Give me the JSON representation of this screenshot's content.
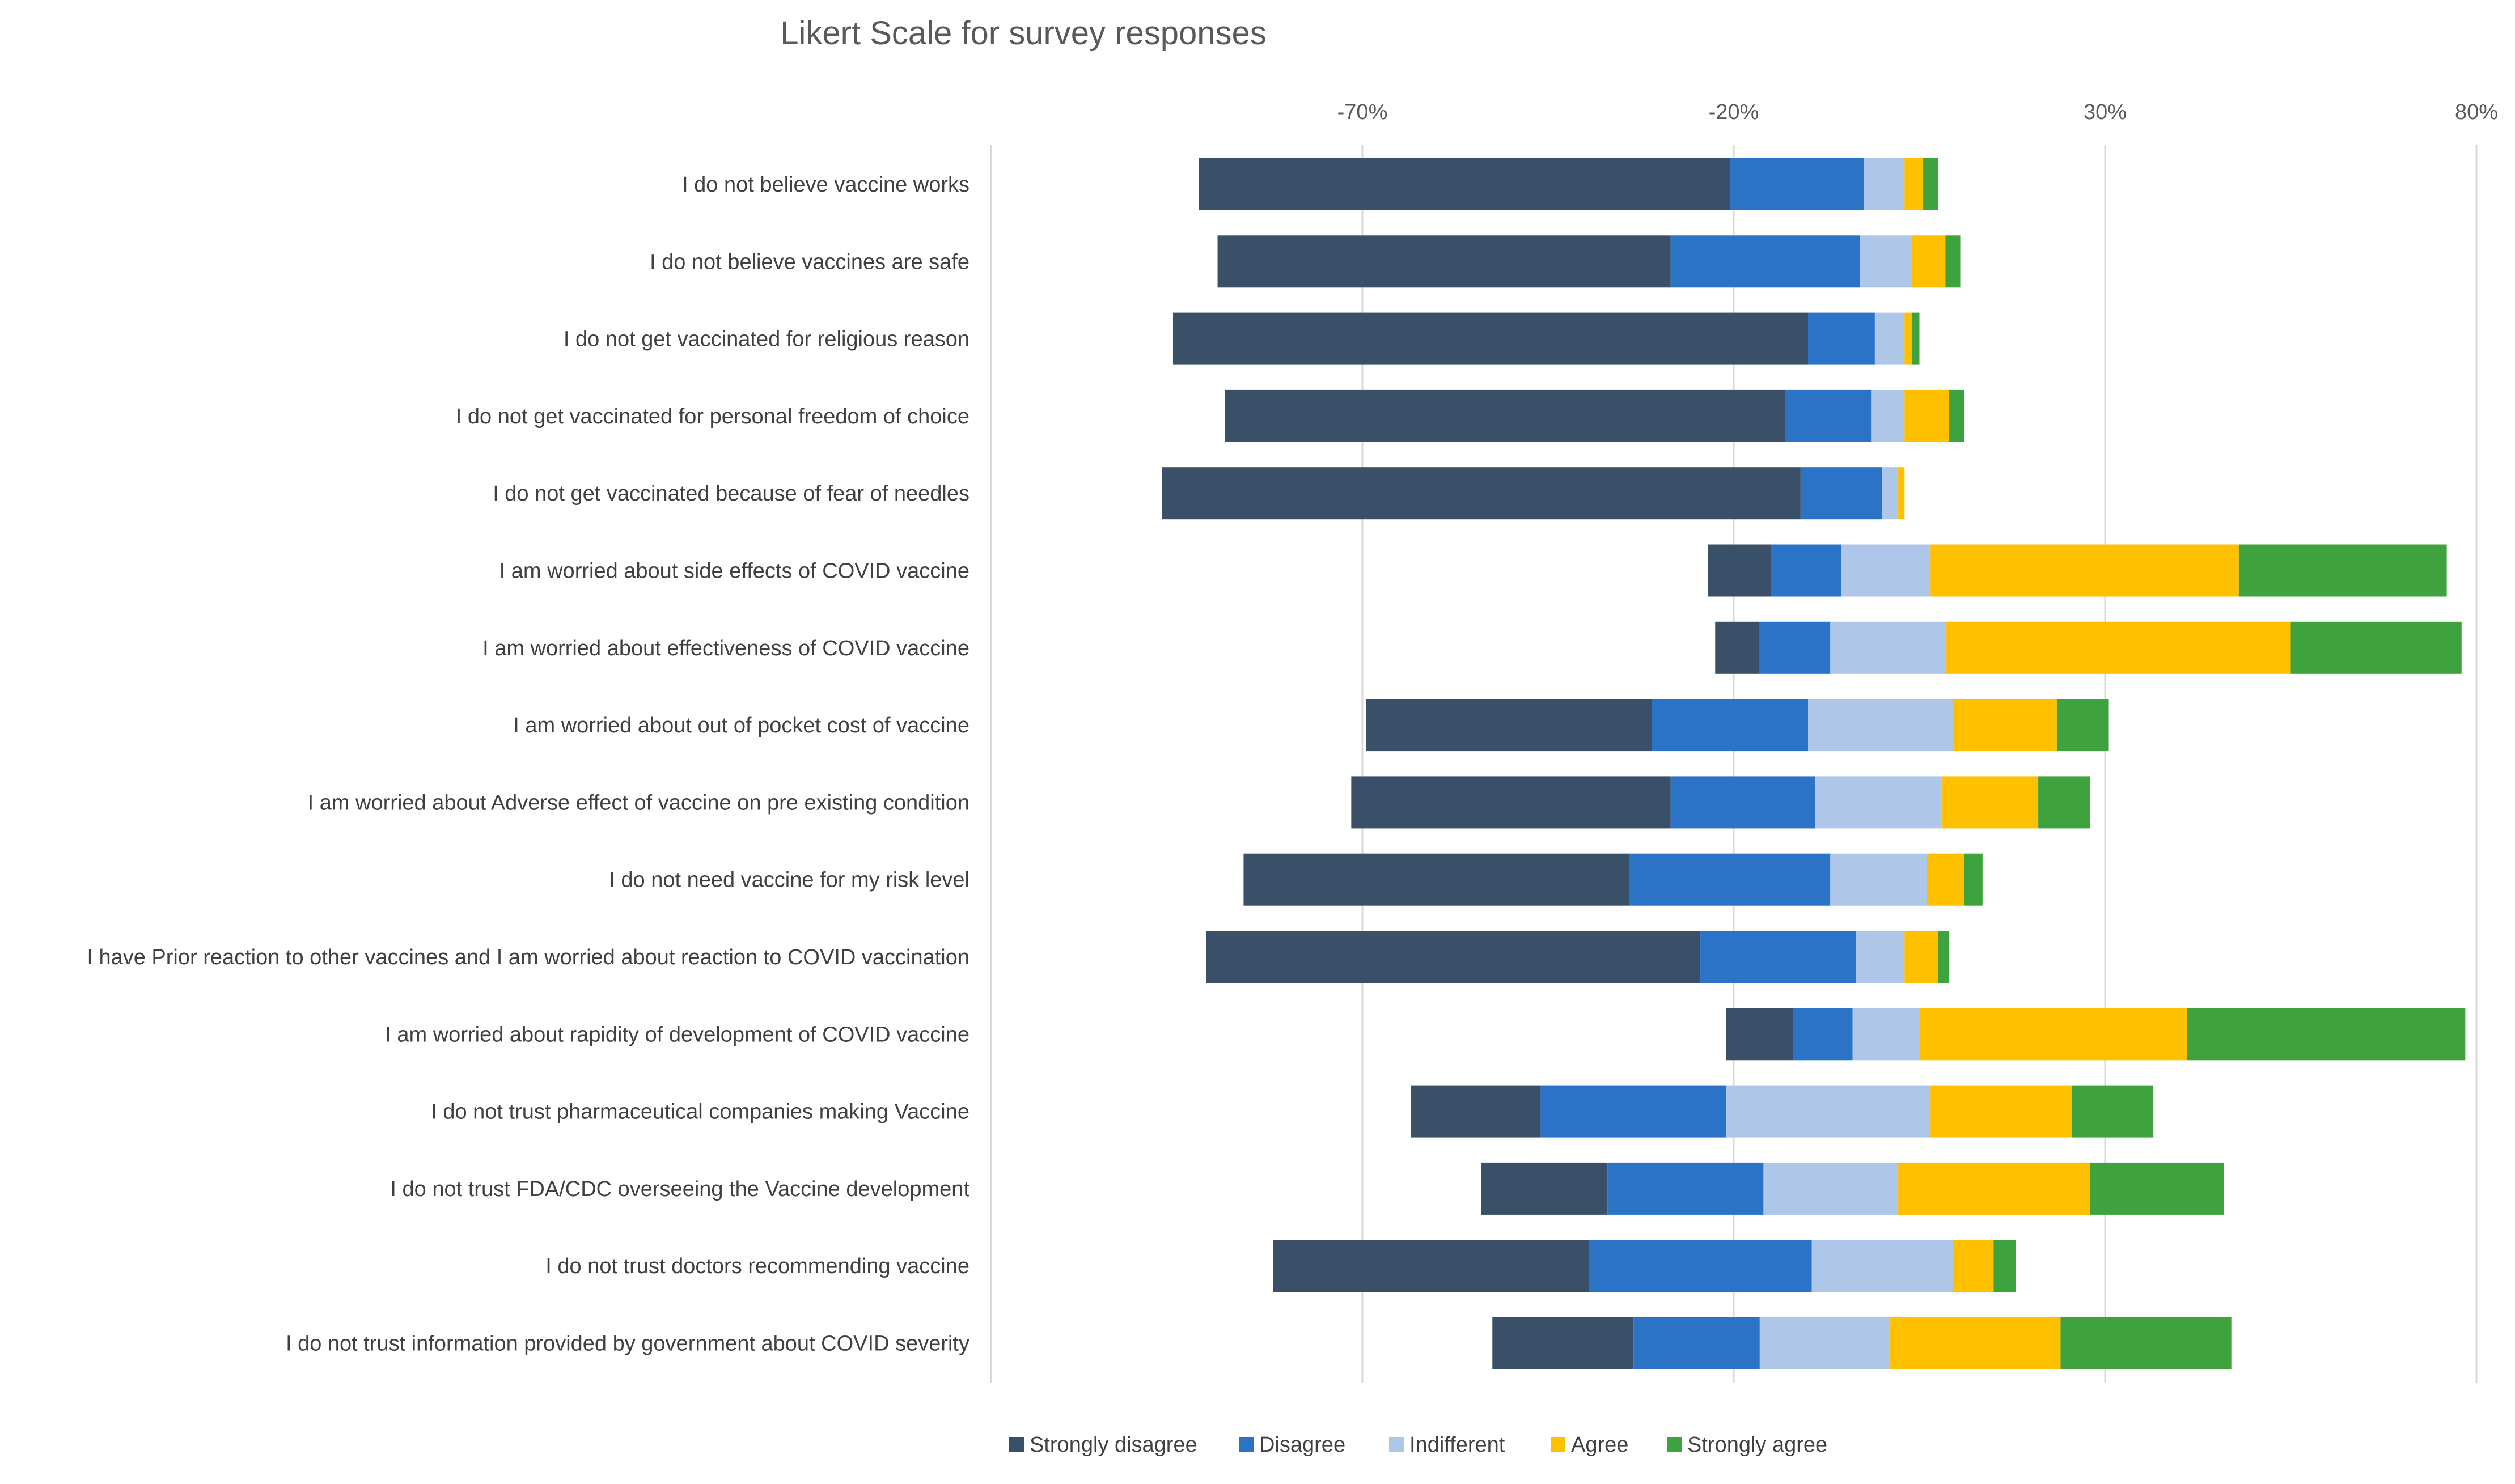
{
  "chart_data": {
    "type": "bar",
    "orientation": "horizontal",
    "stacked": "diverging",
    "title": "Likert Scale for survey responses",
    "xlabel": "",
    "ylabel": "",
    "xlim": [
      -120,
      80
    ],
    "xticks": [
      -70,
      -20,
      30,
      80
    ],
    "xtick_labels": [
      "-70%",
      "-20%",
      "30%",
      "80%"
    ],
    "x_axis_position": "top",
    "grid": true,
    "legend_position": "bottom",
    "categories": [
      "I do not believe vaccine works",
      "I do not believe vaccines are safe",
      "I do not get vaccinated for religious reason",
      "I do not get vaccinated for personal freedom of choice",
      "I do not get vaccinated because of fear  of needles",
      "I am worried about side effects of COVID vaccine",
      "I am worried about effectiveness of COVID vaccine",
      "I am worried about out of pocket cost of vaccine",
      "I am worried about Adverse effect  of vaccine on pre existing condition",
      "I do not need vaccine for my risk level",
      "I have Prior reaction to other vaccines  and I am worried  about reaction to COVID vaccination",
      "I am worried about rapidity of development of COVID vaccine",
      "I do not trust pharmaceutical companies making Vaccine",
      "I do not trust FDA/CDC overseeing the Vaccine development",
      "I do not trust doctors recommending vaccine",
      "I do not trust information provided by government about COVID severity"
    ],
    "starts": [
      -92,
      -89.5,
      -95.5,
      -88.5,
      -97,
      -23.5,
      -22.5,
      -69.5,
      -71.5,
      -86,
      -91,
      -21,
      -63.5,
      -54,
      -82,
      -52.5
    ],
    "series": [
      {
        "name": "Strongly disagree",
        "color": "#3a5069",
        "values": [
          71.5,
          61,
          85.5,
          75.5,
          86,
          8.5,
          6,
          38.5,
          43,
          52,
          66.5,
          9,
          17.5,
          17,
          42.5,
          19
        ]
      },
      {
        "name": "Disagree",
        "color": "#2a73c6",
        "values": [
          18,
          25.5,
          9,
          11.5,
          11,
          9.5,
          9.5,
          21,
          19.5,
          27,
          21,
          8,
          25,
          21,
          30,
          17
        ]
      },
      {
        "name": "Indifferent",
        "color": "#aec6e8",
        "values": [
          5.5,
          7,
          4,
          4.5,
          2,
          12,
          15.5,
          19.5,
          17,
          13,
          6.5,
          9,
          27.5,
          18,
          19,
          17.5
        ]
      },
      {
        "name": "Agree",
        "color": "#ffc000",
        "values": [
          2.5,
          4.5,
          1,
          6,
          1,
          41.5,
          46.5,
          14,
          13,
          5,
          4.5,
          36,
          19,
          26,
          5.5,
          23
        ]
      },
      {
        "name": "Strongly agree",
        "color": "#3ea33e",
        "values": [
          2,
          2,
          1,
          2,
          0,
          28,
          23,
          7,
          7,
          2.5,
          1.5,
          37.5,
          11,
          18,
          3,
          23
        ]
      }
    ]
  }
}
